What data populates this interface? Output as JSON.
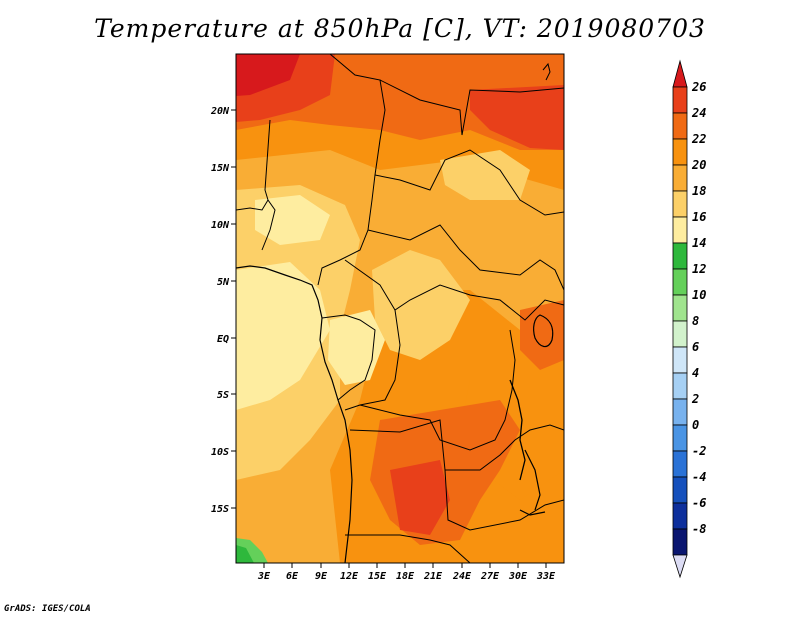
{
  "title": "Temperature at 850hPa [C], VT: 2019080703",
  "credit": "GrADS: IGES/COLA",
  "map": {
    "lat_labels": [
      "20N",
      "15N",
      "10N",
      "5N",
      "EQ",
      "5S",
      "10S",
      "15S"
    ],
    "lon_labels": [
      "3E",
      "6E",
      "9E",
      "12E",
      "15E",
      "18E",
      "21E",
      "24E",
      "27E",
      "30E",
      "33E"
    ]
  },
  "colorbar": {
    "levels": [
      "26",
      "24",
      "22",
      "20",
      "18",
      "16",
      "14",
      "12",
      "10",
      "8",
      "6",
      "4",
      "2",
      "0",
      "-2",
      "-4",
      "-6",
      "-8"
    ],
    "colors": [
      "#d7191c",
      "#e8401a",
      "#f06a14",
      "#f8920f",
      "#f9ad35",
      "#fcd068",
      "#feeda0",
      "#2eb83c",
      "#64d05a",
      "#a0e48e",
      "#d2f2cc",
      "#cfe6f8",
      "#a6d0f4",
      "#78b2ee",
      "#4a94e4",
      "#2a72d6",
      "#1550bc",
      "#0d2f9c",
      "#0a1670",
      "#dcdcf4"
    ]
  }
}
